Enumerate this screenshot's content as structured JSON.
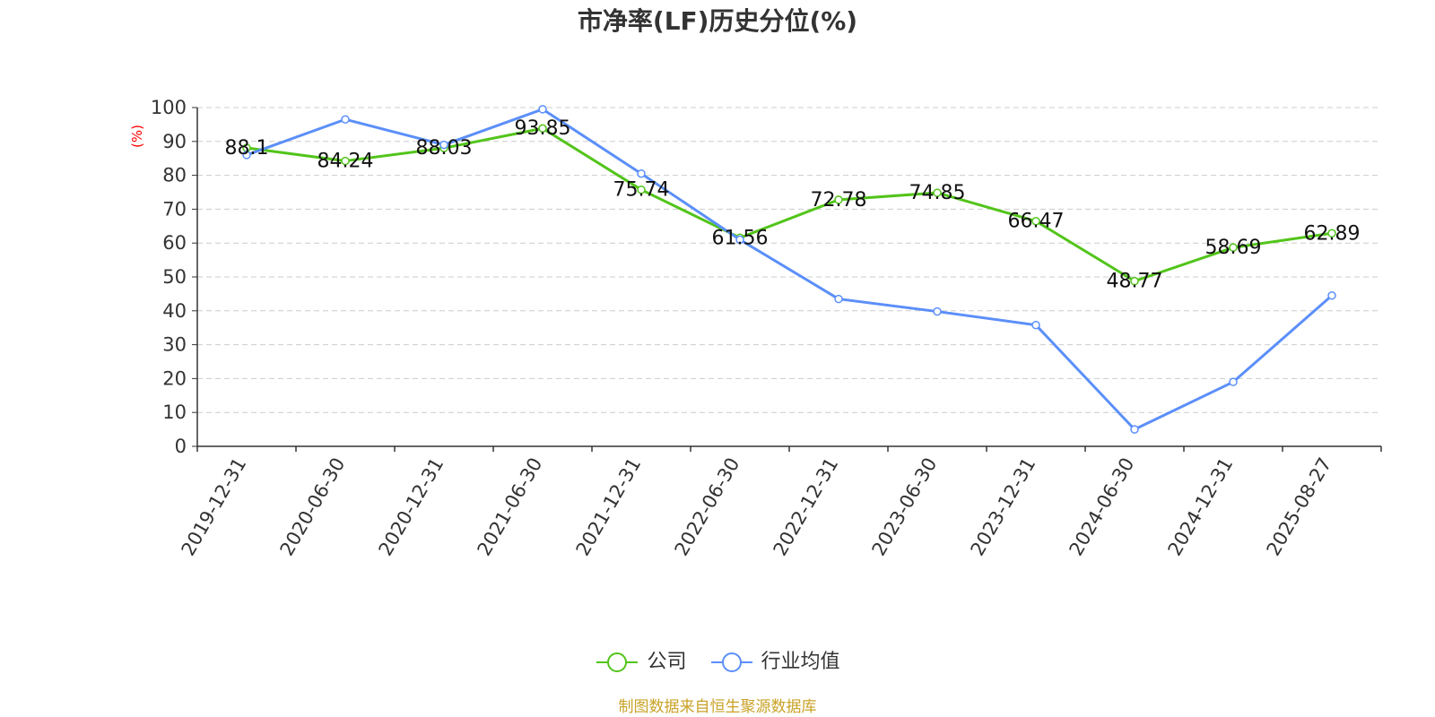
{
  "chart_data": {
    "type": "line",
    "title": "市净率(LF)历史分位(%)",
    "ylabel": "(%)",
    "xlabel": "",
    "ylim": [
      0,
      100
    ],
    "y_ticks": [
      0,
      10,
      20,
      30,
      40,
      50,
      60,
      70,
      80,
      90,
      100
    ],
    "categories": [
      "2019-12-31",
      "2020-06-30",
      "2020-12-31",
      "2021-06-30",
      "2021-12-31",
      "2022-06-30",
      "2022-12-31",
      "2023-06-30",
      "2023-12-31",
      "2024-06-30",
      "2024-12-31",
      "2025-08-27"
    ],
    "series": [
      {
        "name": "公司",
        "color": "#52c41a",
        "values": [
          88.1,
          84.24,
          88.03,
          93.85,
          75.74,
          61.56,
          72.78,
          74.85,
          66.47,
          48.77,
          58.69,
          62.89
        ],
        "labels": [
          "88.1",
          "84.24",
          "88.03",
          "93.85",
          "75.74",
          "61.56",
          "72.78",
          "74.85",
          "66.47",
          "48.77",
          "58.69",
          "62.89"
        ]
      },
      {
        "name": "行业均值",
        "color": "#5b8ff9",
        "values": [
          86.0,
          96.5,
          89.0,
          99.5,
          80.5,
          61.0,
          43.5,
          39.8,
          35.8,
          5.0,
          19.0,
          44.5
        ]
      }
    ],
    "grid": true,
    "legend_position": "bottom"
  },
  "legend": {
    "company_label": "公司",
    "industry_label": "行业均值"
  },
  "source_note": "制图数据来自恒生聚源数据库",
  "colors": {
    "axis": "#333333",
    "grid": "#cccccc",
    "ylabel": "#ff0000",
    "source": "#c9a227"
  }
}
